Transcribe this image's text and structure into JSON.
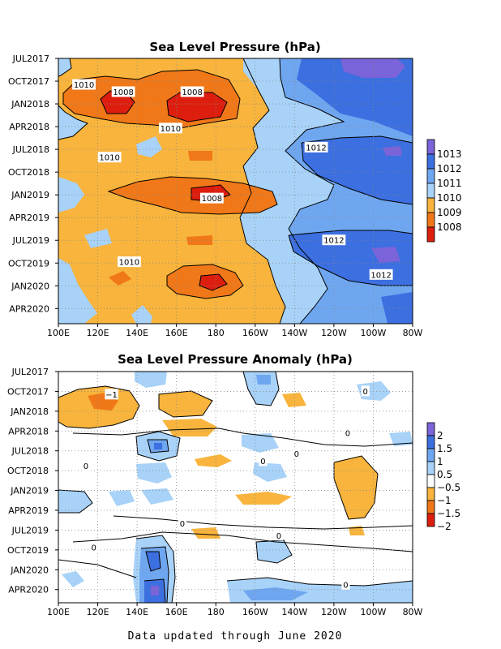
{
  "chart_data": [
    {
      "type": "heatmap",
      "title": "Sea Level Pressure (hPa)",
      "x_ticks": [
        "100E",
        "120E",
        "140E",
        "160E",
        "180",
        "160W",
        "140W",
        "120W",
        "100W",
        "80W"
      ],
      "y_ticks": [
        "JUL2017",
        "OCT2017",
        "JAN2018",
        "APR2018",
        "JUL2018",
        "OCT2018",
        "JAN2019",
        "APR2019",
        "JUL2019",
        "OCT2019",
        "JAN2020",
        "APR2020"
      ],
      "xlim": [
        100,
        280
      ],
      "ylim": [
        "JUL2017",
        "JUN2020"
      ],
      "colorbar": {
        "labels": [
          "1013",
          "1012",
          "1011",
          "1010",
          "1009",
          "1008"
        ],
        "levels": [
          1013,
          1012,
          1011,
          1010,
          1009,
          1008
        ],
        "colors": [
          "#7b63d9",
          "#3c6fe0",
          "#6fa6f0",
          "#a8d2f8",
          "#f8b43c",
          "#f07818",
          "#dd1e0e"
        ]
      },
      "contour_labels": [
        {
          "text": "1010",
          "x": 113,
          "y": 2017.79
        },
        {
          "text": "1008",
          "x": 133,
          "y": 2017.87
        },
        {
          "text": "1008",
          "x": 168,
          "y": 2017.87
        },
        {
          "text": "1010",
          "x": 157,
          "y": 2018.27
        },
        {
          "text": "1010",
          "x": 126,
          "y": 2018.59
        },
        {
          "text": "1012",
          "x": 231,
          "y": 2018.48
        },
        {
          "text": "1008",
          "x": 178,
          "y": 2019.04
        },
        {
          "text": "1012",
          "x": 240,
          "y": 2019.5
        },
        {
          "text": "1010",
          "x": 136,
          "y": 2019.74
        },
        {
          "text": "1012",
          "x": 264,
          "y": 2019.88
        }
      ]
    },
    {
      "type": "heatmap",
      "title": "Sea Level Pressure Anomaly (hPa)",
      "x_ticks": [
        "100E",
        "120E",
        "140E",
        "160E",
        "180",
        "160W",
        "140W",
        "120W",
        "100W",
        "80W"
      ],
      "y_ticks": [
        "JUL2017",
        "OCT2017",
        "JAN2018",
        "APR2018",
        "JUL2018",
        "OCT2018",
        "JAN2019",
        "APR2019",
        "JUL2019",
        "OCT2019",
        "JAN2020",
        "APR2020"
      ],
      "xlim": [
        100,
        280
      ],
      "ylim": [
        "JUL2017",
        "JUN2020"
      ],
      "colorbar": {
        "labels": [
          "2",
          "1.5",
          "1",
          "0.5",
          "−0.5",
          "−1",
          "−1.5",
          "−2"
        ],
        "levels": [
          2,
          1.5,
          1,
          0.5,
          -0.5,
          -1,
          -1.5,
          -2
        ],
        "colors": [
          "#7b63d9",
          "#3c6fe0",
          "#6fa6f0",
          "#a8d2f8",
          "#ffffff",
          "#f8b43c",
          "#f07818",
          "#dd1e0e"
        ]
      },
      "contour_labels": [
        {
          "text": "−1",
          "x": 127,
          "y": 2017.79
        },
        {
          "text": "0",
          "x": 256,
          "y": 2017.75
        },
        {
          "text": "0",
          "x": 247,
          "y": 2018.28
        },
        {
          "text": "0",
          "x": 114,
          "y": 2018.69
        },
        {
          "text": "0",
          "x": 204,
          "y": 2018.63
        },
        {
          "text": "0",
          "x": 221,
          "y": 2018.54
        },
        {
          "text": "0",
          "x": 163,
          "y": 2019.42
        },
        {
          "text": "0",
          "x": 212,
          "y": 2019.57
        },
        {
          "text": "0",
          "x": 118,
          "y": 2019.72
        },
        {
          "text": "0",
          "x": 246,
          "y": 2020.19
        }
      ]
    }
  ],
  "footer": "Data updated through June 2020"
}
